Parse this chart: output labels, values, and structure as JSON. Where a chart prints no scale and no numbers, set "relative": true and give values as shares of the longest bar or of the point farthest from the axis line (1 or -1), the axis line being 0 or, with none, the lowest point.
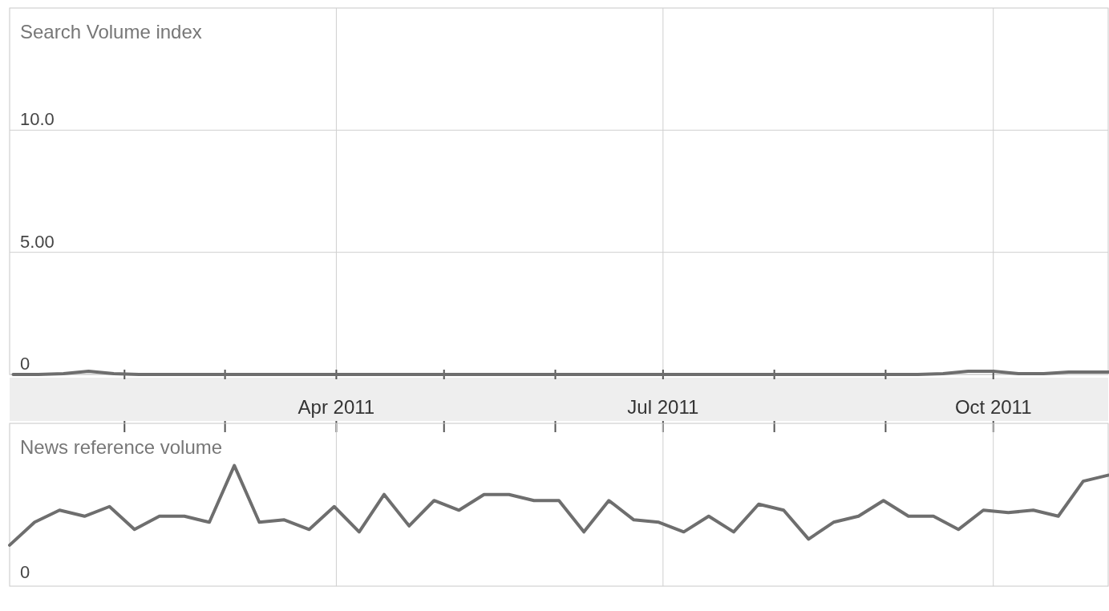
{
  "chart_data": [
    {
      "type": "line",
      "title": "Search Volume index",
      "x": [
        "2011-01-01",
        "2011-01-08",
        "2011-01-15",
        "2011-01-22",
        "2011-01-29",
        "2011-02-05",
        "2011-02-12",
        "2011-02-19",
        "2011-02-26",
        "2011-03-05",
        "2011-03-12",
        "2011-03-19",
        "2011-03-26",
        "2011-04-02",
        "2011-04-09",
        "2011-04-16",
        "2011-04-23",
        "2011-04-30",
        "2011-05-07",
        "2011-05-14",
        "2011-05-21",
        "2011-05-28",
        "2011-06-04",
        "2011-06-11",
        "2011-06-18",
        "2011-06-25",
        "2011-07-02",
        "2011-07-09",
        "2011-07-16",
        "2011-07-23",
        "2011-07-30",
        "2011-08-06",
        "2011-08-13",
        "2011-08-20",
        "2011-08-27",
        "2011-09-03",
        "2011-09-10",
        "2011-09-17",
        "2011-09-24",
        "2011-10-01",
        "2011-10-08",
        "2011-10-15",
        "2011-10-22",
        "2011-10-29",
        "2011-11-02"
      ],
      "series": [
        {
          "color": "#6e6e6e",
          "values": [
            0,
            0,
            0.03,
            0.13,
            0.03,
            0,
            0,
            0,
            0,
            0,
            0,
            0,
            0,
            0,
            0,
            0,
            0,
            0,
            0,
            0,
            0,
            0,
            0,
            0,
            0,
            0,
            0,
            0,
            0,
            0,
            0,
            0,
            0,
            0,
            0,
            0,
            0,
            0.03,
            0.13,
            0.13,
            0.03,
            0.03,
            0.1,
            0.1,
            0.1
          ]
        }
      ],
      "xlim": [
        "2010-12-31",
        "2011-11-02"
      ],
      "xticks": [
        {
          "value": "2011-02-01",
          "label": null
        },
        {
          "value": "2011-03-01",
          "label": null
        },
        {
          "value": "2011-04-01",
          "label": "Apr 2011"
        },
        {
          "value": "2011-05-01",
          "label": null
        },
        {
          "value": "2011-06-01",
          "label": null
        },
        {
          "value": "2011-07-01",
          "label": "Jul 2011"
        },
        {
          "value": "2011-08-01",
          "label": null
        },
        {
          "value": "2011-09-01",
          "label": null
        },
        {
          "value": "2011-10-01",
          "label": "Oct 2011"
        }
      ],
      "ylim": [
        0,
        15
      ],
      "yticks": [
        0,
        {
          "value": 5,
          "label": "5.00"
        },
        {
          "value": 10,
          "label": "10.0"
        }
      ],
      "grid": true,
      "marker": "none",
      "line_style": "solid"
    },
    {
      "type": "line",
      "title": "News reference volume",
      "relative": true,
      "annotations": [
        "0"
      ],
      "categories": [
        null,
        null,
        null,
        null,
        null,
        null,
        null,
        null,
        null,
        null,
        null,
        null,
        null,
        null,
        null,
        null,
        null,
        null,
        null,
        null,
        null,
        null,
        null,
        null,
        null,
        null,
        null,
        null,
        null,
        null,
        null,
        null,
        null,
        null,
        null,
        null,
        null,
        null,
        null,
        null,
        null,
        null,
        null,
        null,
        null
      ],
      "series": [
        {
          "color": "#6e6e6e",
          "values": [
            0.34,
            0.53,
            0.63,
            0.58,
            0.66,
            0.47,
            0.58,
            0.58,
            0.53,
            1,
            0.53,
            0.55,
            0.47,
            0.66,
            0.45,
            0.76,
            0.5,
            0.71,
            0.63,
            0.76,
            0.76,
            0.71,
            0.71,
            0.45,
            0.71,
            0.55,
            0.53,
            0.45,
            0.58,
            0.45,
            0.68,
            0.63,
            0.39,
            0.53,
            0.58,
            0.71,
            0.58,
            0.58,
            0.47,
            0.63,
            0.61,
            0.63,
            0.58,
            0.87,
            0.92
          ]
        }
      ],
      "grid": "x",
      "marker": "none",
      "line_style": "solid"
    }
  ]
}
